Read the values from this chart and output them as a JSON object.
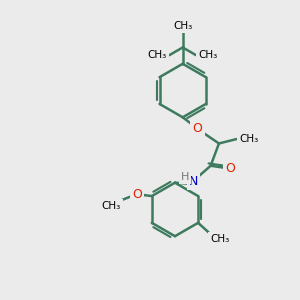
{
  "bg_color": "#ebebeb",
  "bond_color": "#3d7a5e",
  "bond_width": 1.8,
  "atom_colors": {
    "O": "#dd2200",
    "N": "#0000cc",
    "H": "#777777"
  },
  "font_size_atom": 9,
  "font_size_small": 7.5,
  "fig_width": 3.0,
  "fig_height": 3.0,
  "xlim": [
    0,
    10
  ],
  "ylim": [
    0,
    10
  ]
}
